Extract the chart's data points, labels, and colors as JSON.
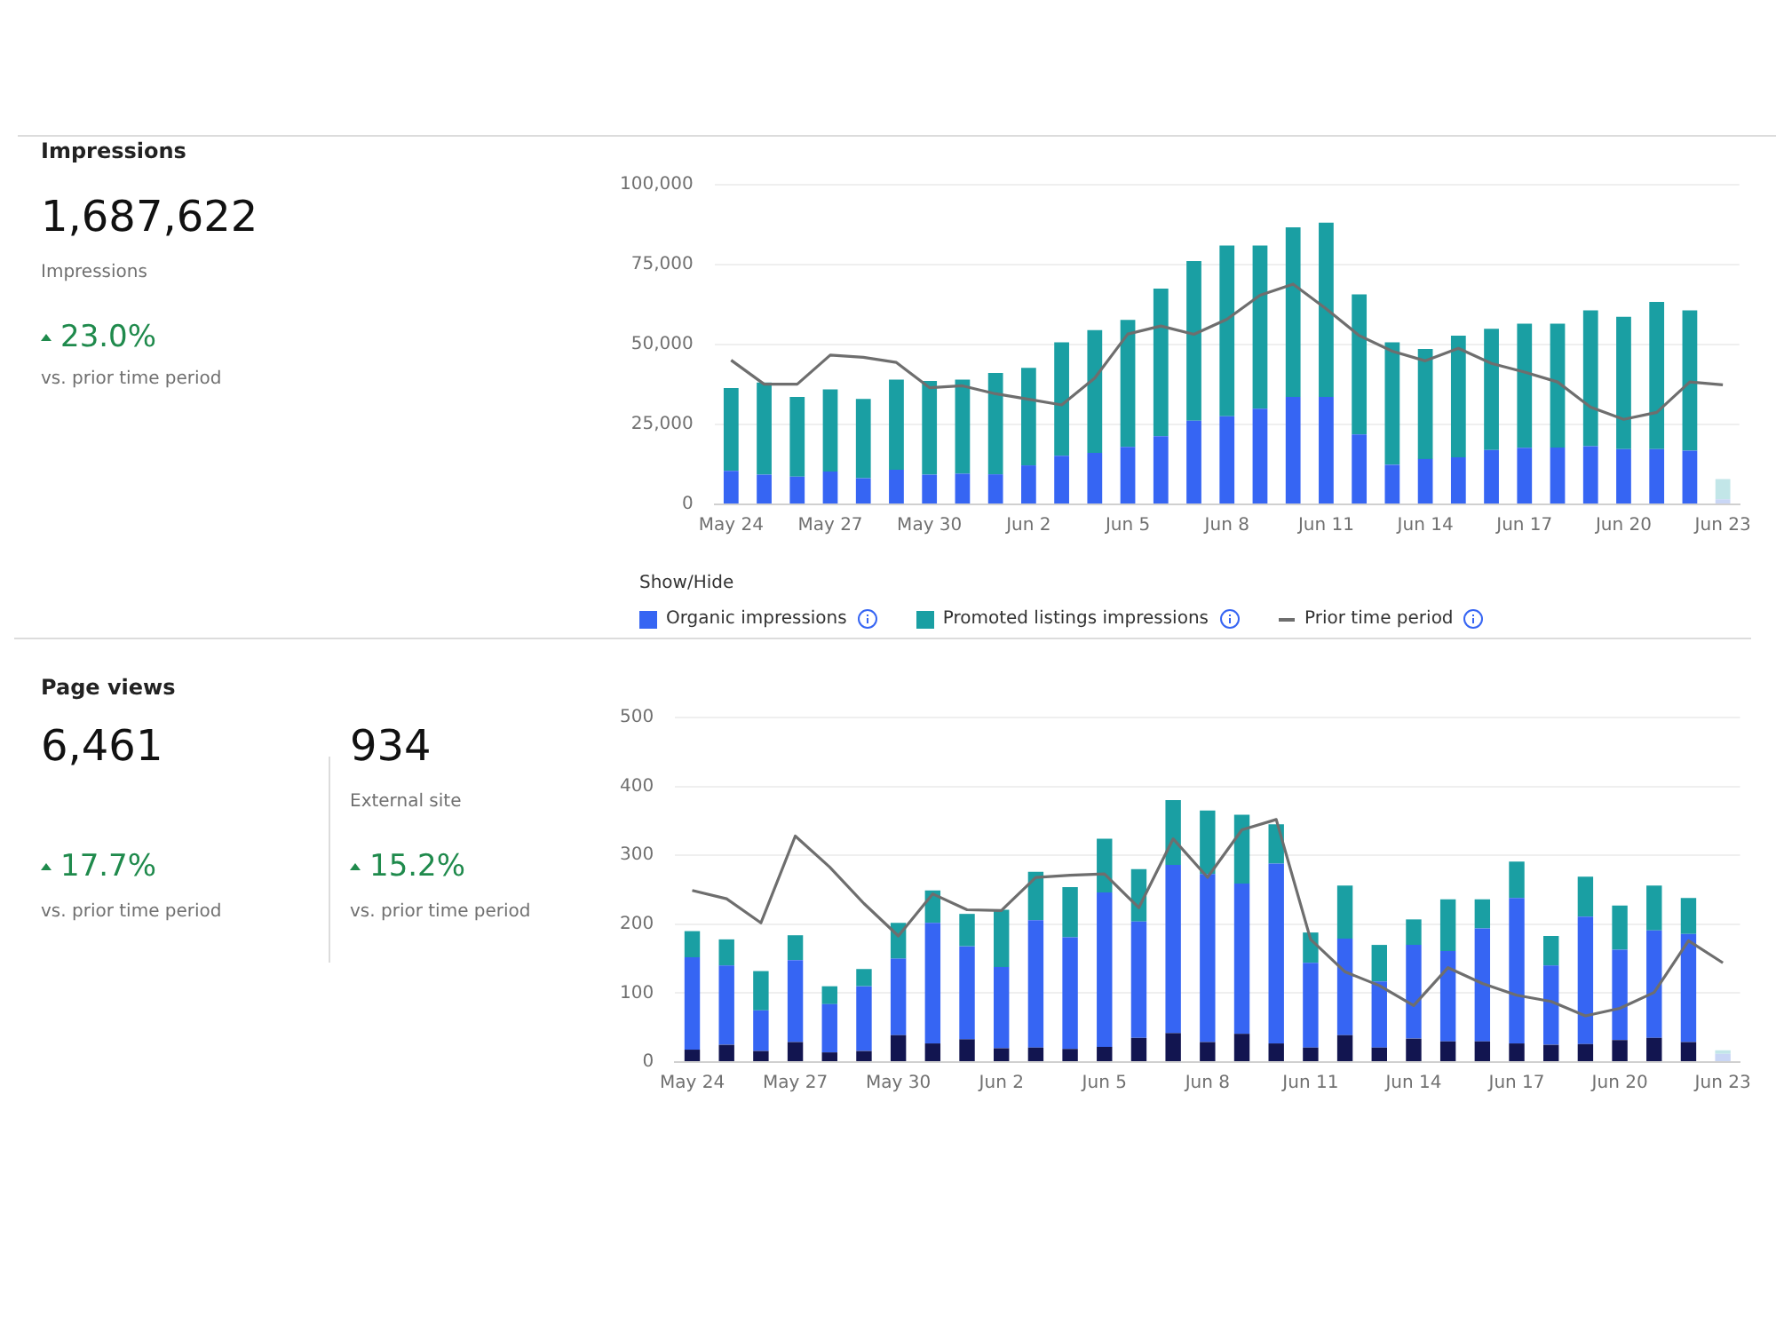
{
  "chart_data": [
    {
      "type": "other",
      "title": "Impressions",
      "annotations": [
        "1,687,622",
        "Impressions",
        "23.0%",
        "vs. prior time period"
      ]
    },
    {
      "type": "bar",
      "stacked": true,
      "grid": "y",
      "legend": "bottom",
      "legend_title": "Show/Hide",
      "marker": "none",
      "categories": [
        "May 24",
        null,
        null,
        "May 27",
        null,
        null,
        "May 30",
        null,
        null,
        "Jun 2",
        null,
        null,
        "Jun 5",
        null,
        null,
        "Jun 8",
        null,
        null,
        "Jun 11",
        null,
        null,
        "Jun 14",
        null,
        null,
        "Jun 17",
        null,
        null,
        "Jun 20",
        null,
        null,
        "Jun 23"
      ],
      "ylim": [
        0,
        100000
      ],
      "yticks": [
        0,
        {
          "value": 25000,
          "label": "25,000"
        },
        {
          "value": 50000,
          "label": "50,000"
        },
        {
          "value": 75000,
          "label": "75,000"
        },
        {
          "value": 100000,
          "label": "100,000"
        }
      ],
      "series": [
        {
          "name": "Organic impressions",
          "type": "bar",
          "color": "#3665f3",
          "colors": [
            null,
            null,
            null,
            null,
            null,
            null,
            null,
            null,
            null,
            null,
            null,
            null,
            null,
            null,
            null,
            null,
            null,
            null,
            null,
            null,
            null,
            null,
            null,
            null,
            null,
            null,
            null,
            null,
            null,
            null,
            "#c9d6f5"
          ],
          "values": [
            10500,
            9300,
            8700,
            10300,
            8200,
            10800,
            9300,
            9600,
            9400,
            12200,
            15200,
            16100,
            18000,
            21300,
            26200,
            27600,
            29900,
            33600,
            33600,
            21900,
            12400,
            14200,
            14700,
            17000,
            17700,
            17800,
            18200,
            17300,
            17300,
            16800,
            1600
          ]
        },
        {
          "name": "Promoted listings impressions",
          "type": "bar",
          "color": "#1a9fa3",
          "colors": [
            null,
            null,
            null,
            null,
            null,
            null,
            null,
            null,
            null,
            null,
            null,
            null,
            null,
            null,
            null,
            null,
            null,
            null,
            null,
            null,
            null,
            null,
            null,
            null,
            null,
            null,
            null,
            null,
            null,
            null,
            "#c2e6e8"
          ],
          "values": [
            25900,
            28800,
            24900,
            25700,
            24800,
            28200,
            29300,
            29400,
            31700,
            30500,
            35500,
            38400,
            39700,
            46200,
            49900,
            53400,
            51100,
            53100,
            54500,
            43800,
            38300,
            34400,
            38100,
            37900,
            38800,
            38700,
            42500,
            41400,
            46000,
            43900,
            6300
          ]
        },
        {
          "name": "Prior time period",
          "type": "line",
          "color": "#6e6e6e",
          "values": [
            45100,
            37600,
            37600,
            46700,
            46000,
            44400,
            36500,
            37100,
            34600,
            32900,
            31100,
            39500,
            53300,
            55800,
            53200,
            57900,
            65400,
            68900,
            61200,
            52800,
            47900,
            44900,
            48800,
            44100,
            41400,
            38300,
            30400,
            26600,
            28800,
            38300,
            37400
          ]
        }
      ]
    },
    {
      "type": "other",
      "title": "Page views",
      "annotations": [
        "6,461",
        "17.7%",
        "vs. prior time period",
        "934",
        "External site",
        "15.2%",
        "vs. prior time period"
      ]
    },
    {
      "type": "bar",
      "stacked": true,
      "grid": "y",
      "marker": "none",
      "categories": [
        "May 24",
        null,
        null,
        "May 27",
        null,
        null,
        "May 30",
        null,
        null,
        "Jun 2",
        null,
        null,
        "Jun 5",
        null,
        null,
        "Jun 8",
        null,
        null,
        "Jun 11",
        null,
        null,
        "Jun 14",
        null,
        null,
        "Jun 17",
        null,
        null,
        "Jun 20",
        null,
        null,
        "Jun 23"
      ],
      "ylim": [
        0,
        500
      ],
      "yticks": [
        0,
        100,
        200,
        300,
        400,
        500
      ],
      "series": [
        {
          "type": "bar",
          "color": "#121550",
          "colors": [
            null,
            null,
            null,
            null,
            null,
            null,
            null,
            null,
            null,
            null,
            null,
            null,
            null,
            null,
            null,
            null,
            null,
            null,
            null,
            null,
            null,
            null,
            null,
            null,
            null,
            null,
            null,
            null,
            null,
            null,
            "#d6d8e6"
          ],
          "values": [
            18,
            25,
            16,
            29,
            14,
            16,
            39,
            27,
            33,
            20,
            21,
            19,
            22,
            35,
            42,
            29,
            41,
            27,
            21,
            39,
            21,
            34,
            30,
            30,
            27,
            25,
            26,
            32,
            35,
            29,
            null
          ]
        },
        {
          "type": "bar",
          "color": "#3665f3",
          "colors": [
            null,
            null,
            null,
            null,
            null,
            null,
            null,
            null,
            null,
            null,
            null,
            null,
            null,
            null,
            null,
            null,
            null,
            null,
            null,
            null,
            null,
            null,
            null,
            null,
            null,
            null,
            null,
            null,
            null,
            null,
            "#c9d6f5"
          ],
          "values": [
            134,
            115,
            59,
            119,
            70,
            94,
            111,
            175,
            135,
            118,
            185,
            162,
            224,
            169,
            244,
            244,
            218,
            261,
            123,
            140,
            96,
            136,
            131,
            164,
            211,
            115,
            185,
            131,
            156,
            157,
            12
          ]
        },
        {
          "type": "bar",
          "color": "#1a9fa3",
          "colors": [
            null,
            null,
            null,
            null,
            null,
            null,
            null,
            null,
            null,
            null,
            null,
            null,
            null,
            null,
            null,
            null,
            null,
            null,
            null,
            null,
            null,
            null,
            null,
            null,
            null,
            null,
            null,
            null,
            null,
            null,
            "#c2e6e8"
          ],
          "values": [
            38,
            38,
            57,
            36,
            26,
            25,
            52,
            47,
            47,
            83,
            70,
            73,
            78,
            76,
            94,
            92,
            100,
            57,
            44,
            77,
            53,
            37,
            75,
            42,
            53,
            43,
            58,
            64,
            65,
            52,
            5
          ]
        },
        {
          "type": "line",
          "color": "#6e6e6e",
          "values": [
            249,
            237,
            202,
            328,
            283,
            230,
            183,
            244,
            221,
            220,
            268,
            271,
            273,
            224,
            324,
            268,
            337,
            352,
            178,
            131,
            111,
            82,
            137,
            114,
            97,
            88,
            67,
            78,
            101,
            176,
            144
          ]
        }
      ]
    }
  ]
}
